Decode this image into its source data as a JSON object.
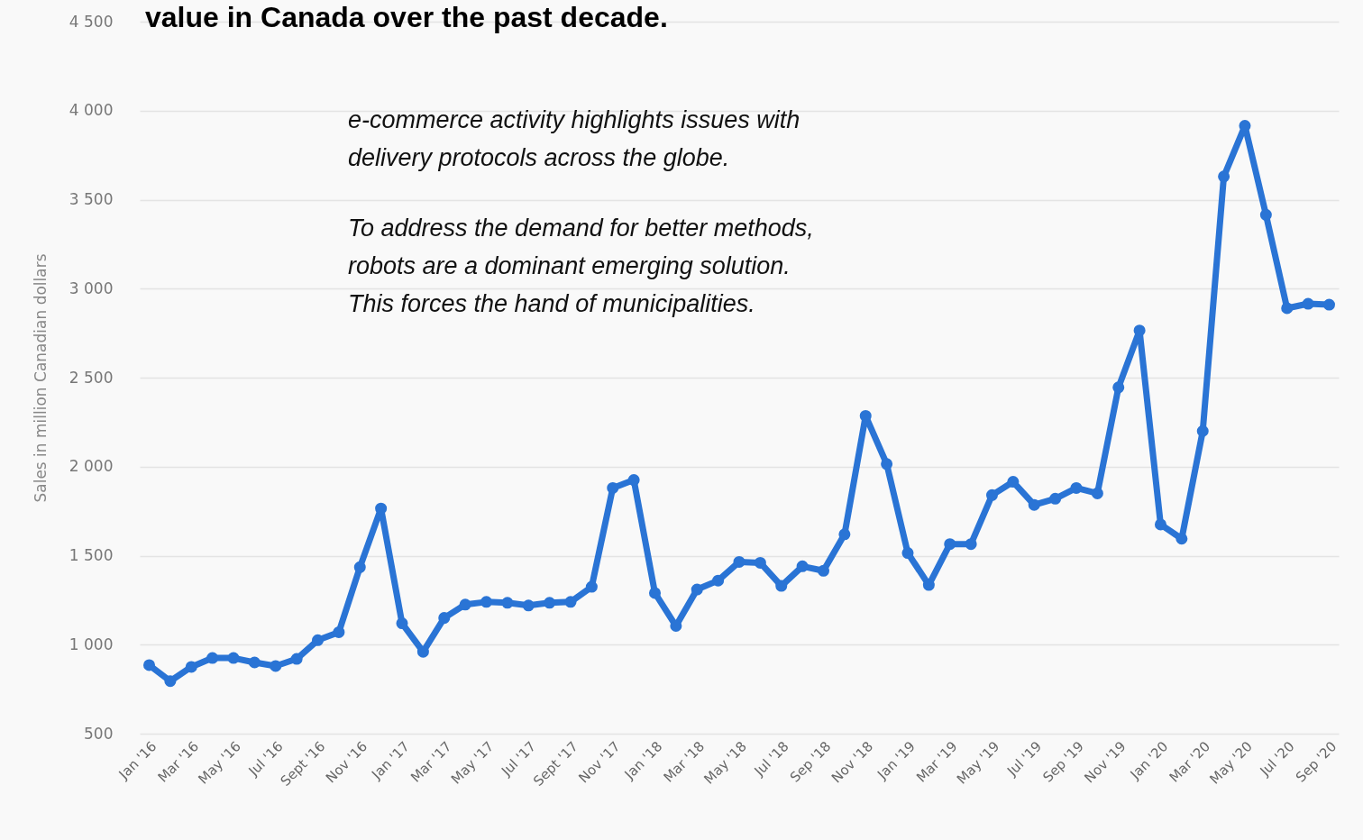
{
  "chart_data": {
    "type": "line",
    "title": "value in Canada over the past decade.",
    "ylabel": "Sales in million Canadian dollars",
    "annotations": [
      "e-commerce activity highlights issues with delivery protocols across the globe.",
      "To address the demand for better methods, robots are a dominant emerging solution. This forces the hand of municipalities."
    ],
    "categories": [
      "Jan '16",
      null,
      "Mar '16",
      null,
      "May '16",
      null,
      "Jul '16",
      null,
      "Sept '16",
      null,
      "Nov '16",
      null,
      "Jan '17",
      null,
      "Mar '17",
      null,
      "May '17",
      null,
      "Jul '17",
      null,
      "Sept '17",
      null,
      "Nov '17",
      null,
      "Jan '18",
      null,
      "Mar '18",
      null,
      "May '18",
      null,
      "Jul '18",
      null,
      "Sep '18",
      null,
      "Nov '18",
      null,
      "Jan '19",
      null,
      "Mar '19",
      null,
      "May '19",
      null,
      "Jul '19",
      null,
      "Sep '19",
      null,
      "Nov '19",
      null,
      "Jan '20",
      null,
      "Mar '20",
      null,
      "May '20",
      null,
      "Jul '20",
      null,
      "Sep '20"
    ],
    "series": [
      {
        "color": "#2a74d5",
        "values": [
          885,
          795,
          875,
          925,
          925,
          900,
          880,
          920,
          1025,
          1070,
          1435,
          1765,
          1120,
          960,
          1150,
          1225,
          1240,
          1235,
          1220,
          1235,
          1240,
          1325,
          1880,
          1925,
          1290,
          1105,
          1310,
          1360,
          1465,
          1460,
          1330,
          1440,
          1415,
          1620,
          2285,
          2015,
          1515,
          1335,
          1565,
          1565,
          1840,
          1915,
          1785,
          1820,
          1880,
          1850,
          2445,
          2765,
          1675,
          1595,
          2200,
          3630,
          3915,
          3415,
          2890,
          2915,
          2910
        ]
      }
    ],
    "ylim": [
      500,
      4500
    ],
    "yticks": [
      {
        "value": 500,
        "label": "500"
      },
      {
        "value": 1000,
        "label": "1 000"
      },
      {
        "value": 1500,
        "label": "1 500"
      },
      {
        "value": 2000,
        "label": "2 000"
      },
      {
        "value": 2500,
        "label": "2 500"
      },
      {
        "value": 3000,
        "label": "3 000"
      },
      {
        "value": 3500,
        "label": "3 500"
      },
      {
        "value": 4000,
        "label": "4 000"
      },
      {
        "value": 4500,
        "label": "4 500"
      }
    ],
    "grid": "y",
    "marker": "circle",
    "line_style": "solid",
    "legend": false
  }
}
